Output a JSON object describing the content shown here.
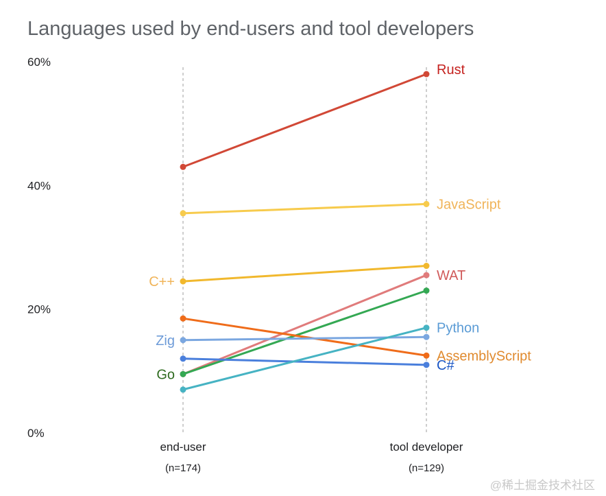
{
  "chart_data": {
    "type": "line",
    "title": "Languages used by end-users and tool developers",
    "categories": [
      "end-user",
      "tool developer"
    ],
    "category_subtitles": [
      "(n=174)",
      "(n=129)"
    ],
    "ylim": [
      0,
      60
    ],
    "yticks": [
      0,
      20,
      40,
      60
    ],
    "ytick_labels": [
      "0%",
      "20%",
      "40%",
      "60%"
    ],
    "grid": false,
    "series": [
      {
        "name": "Rust",
        "values": [
          43,
          58
        ],
        "color": "#d14836",
        "label_color": "#c5221f",
        "label_side": "right"
      },
      {
        "name": "JavaScript",
        "values": [
          35.5,
          37
        ],
        "color": "#f7cb4d",
        "label_color": "#f0b459",
        "label_side": "right"
      },
      {
        "name": "C++",
        "values": [
          24.5,
          27
        ],
        "color": "#f1b82d",
        "label_color": "#f0b459",
        "label_side": "left"
      },
      {
        "name": "WAT",
        "values": [
          9.5,
          25.5
        ],
        "color": "#e07b7b",
        "label_color": "#d05a5a",
        "label_side": "right"
      },
      {
        "name": "Go",
        "values": [
          9.5,
          23
        ],
        "color": "#34a853",
        "label_color": "#2e6b1f",
        "label_side": "left"
      },
      {
        "name": "AssemblyScript",
        "values": [
          18.5,
          12.5
        ],
        "color": "#ef6c1a",
        "label_color": "#e08a2e",
        "label_side": "right"
      },
      {
        "name": "Zig",
        "values": [
          15,
          15.5
        ],
        "color": "#7ba7e0",
        "label_color": "#6d9bd8",
        "label_side": "left"
      },
      {
        "name": "C#",
        "values": [
          12,
          11
        ],
        "color": "#4a7fdc",
        "label_color": "#1a56c4",
        "label_side": "right"
      },
      {
        "name": "Python",
        "values": [
          7,
          17
        ],
        "color": "#46b3c3",
        "label_color": "#5a9bd5",
        "label_side": "right"
      }
    ]
  },
  "watermark": "@稀土掘金技术社区"
}
